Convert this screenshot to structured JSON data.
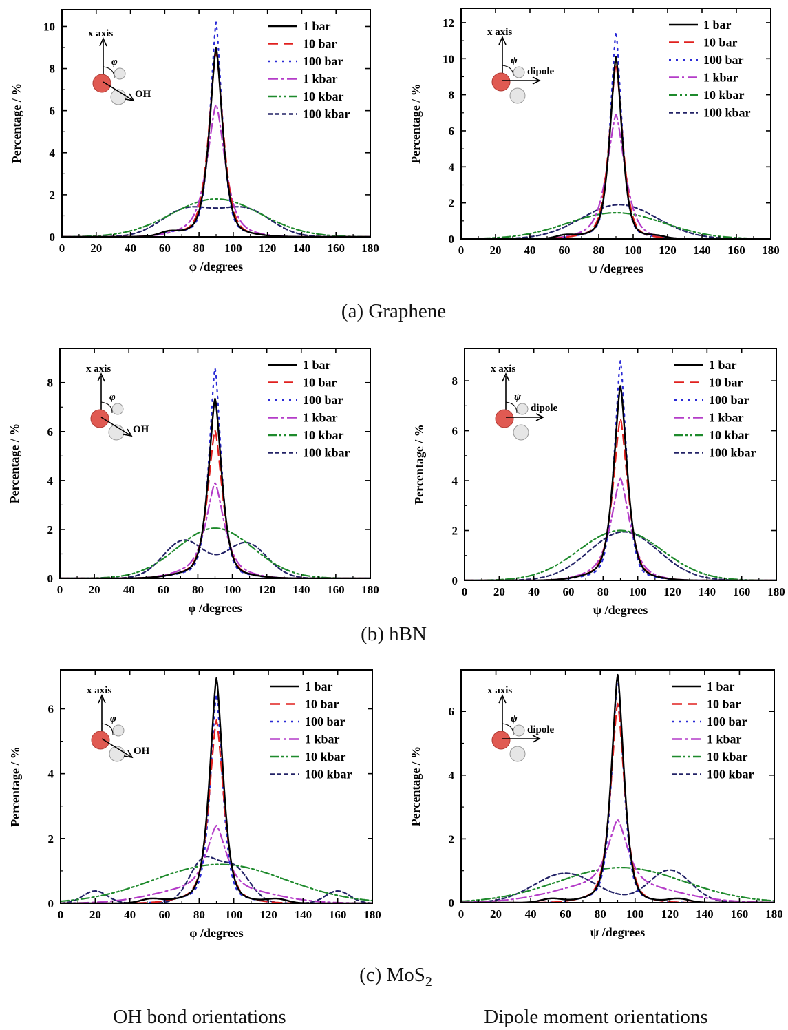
{
  "styles": {
    "1 bar": {
      "color": "#000000",
      "dash": ""
    },
    "10 bar": {
      "color": "#e0201e",
      "dash": "14 8"
    },
    "100 bar": {
      "color": "#2a2ad6",
      "dash": "3 7"
    },
    "1 kbar": {
      "color": "#b43cc8",
      "dash": "14 5 3 5"
    },
    "10 kbar": {
      "color": "#1e8a2c",
      "dash": "12 4 3 4 3 4"
    },
    "100 kbar": {
      "color": "#222266",
      "dash": "6 4"
    }
  },
  "captions": {
    "graphene": "(a) Graphene",
    "hbn": "(b) hBN",
    "mos2_pre": "(c) MoS",
    "mos2_sub": "2",
    "oh": "OH bond orientations",
    "dipole": "Dipole moment orientations"
  },
  "chart_data": [
    {
      "id": "graphene-oh",
      "type": "line",
      "xlabel": "φ /degrees",
      "ylabel": "Percentage / %",
      "xlim": [
        0,
        180
      ],
      "ylim": [
        0,
        10.8
      ],
      "xticks": [
        0,
        20,
        40,
        60,
        80,
        100,
        120,
        140,
        160,
        180
      ],
      "yticks": [
        0,
        2,
        4,
        6,
        8,
        10
      ],
      "inset": {
        "axis": "x axis",
        "angle": "φ",
        "vector": "OH"
      },
      "series": [
        {
          "name": "1 bar",
          "comps": [
            [
              90,
              8.5,
              3.5,
              1.5
            ],
            [
              88,
              0.5,
              16,
              2
            ],
            [
              62,
              0.15,
              5,
              2
            ]
          ]
        },
        {
          "name": "10 bar",
          "comps": [
            [
              90,
              8.3,
              3.8,
              1.5
            ],
            [
              88,
              0.5,
              16,
              2
            ],
            [
              62,
              0.15,
              5,
              2
            ]
          ]
        },
        {
          "name": "100 bar",
          "comps": [
            [
              90,
              9.7,
              3.2,
              1.5
            ],
            [
              88,
              0.5,
              16,
              2
            ],
            [
              62,
              0.12,
              5,
              2
            ]
          ]
        },
        {
          "name": "1 kbar",
          "comps": [
            [
              90,
              5.6,
              4.5,
              1.5
            ],
            [
              88,
              0.7,
              16,
              2
            ]
          ]
        },
        {
          "name": "10 kbar",
          "comps": [
            [
              90,
              1.8,
              26,
              2
            ]
          ]
        },
        {
          "name": "100 kbar",
          "comps": [
            [
              73,
              1.3,
              15,
              2
            ],
            [
              107,
              1.3,
              15,
              2
            ]
          ]
        }
      ]
    },
    {
      "id": "graphene-dipole",
      "type": "line",
      "xlabel": "ψ /degrees",
      "ylabel": "Percentage / %",
      "xlim": [
        0,
        180
      ],
      "ylim": [
        0,
        12.8
      ],
      "xticks": [
        0,
        20,
        40,
        60,
        80,
        100,
        120,
        140,
        160,
        180
      ],
      "yticks": [
        0,
        2,
        4,
        6,
        8,
        10,
        12
      ],
      "inset": {
        "axis": "x axis",
        "angle": "ψ",
        "vector": "dipole"
      },
      "series": [
        {
          "name": "1 bar",
          "comps": [
            [
              90,
              9.6,
              3.2,
              1.5
            ],
            [
              88,
              0.5,
              15,
              2
            ],
            [
              60,
              0.15,
              5,
              2
            ],
            [
              114,
              0.1,
              5,
              2
            ]
          ]
        },
        {
          "name": "10 bar",
          "comps": [
            [
              90,
              9.2,
              3.5,
              1.5
            ],
            [
              88,
              0.5,
              15,
              2
            ]
          ]
        },
        {
          "name": "100 bar",
          "comps": [
            [
              90,
              11.0,
              3.0,
              1.5
            ],
            [
              88,
              0.5,
              15,
              2
            ]
          ]
        },
        {
          "name": "1 kbar",
          "comps": [
            [
              90,
              6.2,
              4.5,
              1.5
            ],
            [
              88,
              0.7,
              15,
              2
            ]
          ]
        },
        {
          "name": "10 kbar",
          "comps": [
            [
              90,
              1.45,
              28,
              2
            ]
          ]
        },
        {
          "name": "100 kbar",
          "comps": [
            [
              92,
              1.9,
              22,
              2
            ]
          ]
        }
      ]
    },
    {
      "id": "hbn-oh",
      "type": "line",
      "xlabel": "φ /degrees",
      "ylabel": "Percentage / %",
      "xlim": [
        0,
        180
      ],
      "ylim": [
        0,
        9.4
      ],
      "xticks": [
        0,
        20,
        40,
        60,
        80,
        100,
        120,
        140,
        160,
        180
      ],
      "yticks": [
        0,
        2,
        4,
        6,
        8
      ],
      "inset": {
        "axis": "x axis",
        "angle": "φ",
        "vector": "OH"
      },
      "series": [
        {
          "name": "1 bar",
          "comps": [
            [
              90,
              6.9,
              3.5,
              1.5
            ],
            [
              88,
              0.45,
              16,
              2
            ]
          ]
        },
        {
          "name": "10 bar",
          "comps": [
            [
              90,
              5.6,
              3.8,
              1.5
            ],
            [
              88,
              0.45,
              16,
              2
            ]
          ]
        },
        {
          "name": "100 bar",
          "comps": [
            [
              90,
              8.2,
              3.2,
              1.5
            ],
            [
              88,
              0.4,
              16,
              2
            ]
          ]
        },
        {
          "name": "1 kbar",
          "comps": [
            [
              90,
              3.3,
              4.5,
              1.5
            ],
            [
              88,
              0.6,
              16,
              2
            ]
          ]
        },
        {
          "name": "10 kbar",
          "comps": [
            [
              90,
              2.05,
              22,
              2
            ]
          ]
        },
        {
          "name": "100 kbar",
          "comps": [
            [
              72,
              1.55,
              12,
              2
            ],
            [
              108,
              1.45,
              12,
              2
            ]
          ]
        }
      ]
    },
    {
      "id": "hbn-dipole",
      "type": "line",
      "xlabel": "ψ /degrees",
      "ylabel": "Percentage / %",
      "xlim": [
        0,
        180
      ],
      "ylim": [
        0,
        9.3
      ],
      "xticks": [
        0,
        20,
        40,
        60,
        80,
        100,
        120,
        140,
        160,
        180
      ],
      "yticks": [
        0,
        2,
        4,
        6,
        8
      ],
      "inset": {
        "axis": "x axis",
        "angle": "ψ",
        "vector": "dipole"
      },
      "series": [
        {
          "name": "1 bar",
          "comps": [
            [
              90,
              7.3,
              3.5,
              1.5
            ],
            [
              88,
              0.5,
              15,
              2
            ]
          ]
        },
        {
          "name": "10 bar",
          "comps": [
            [
              90,
              6.0,
              3.8,
              1.5
            ],
            [
              88,
              0.5,
              15,
              2
            ]
          ]
        },
        {
          "name": "100 bar",
          "comps": [
            [
              90,
              8.4,
              3.2,
              1.5
            ],
            [
              88,
              0.4,
              15,
              2
            ]
          ]
        },
        {
          "name": "1 kbar",
          "comps": [
            [
              90,
              3.5,
              4.5,
              1.5
            ],
            [
              88,
              0.6,
              15,
              2
            ]
          ]
        },
        {
          "name": "10 kbar",
          "comps": [
            [
              90,
              2.0,
              24,
              2
            ]
          ]
        },
        {
          "name": "100 kbar",
          "comps": [
            [
              92,
              1.95,
              20,
              2
            ]
          ]
        }
      ]
    },
    {
      "id": "mos2-oh",
      "type": "line",
      "xlabel": "φ /degrees",
      "ylabel": "Percentage / %",
      "xlim": [
        0,
        180
      ],
      "ylim": [
        0,
        7.2
      ],
      "xticks": [
        0,
        20,
        40,
        60,
        80,
        100,
        120,
        140,
        160,
        180
      ],
      "yticks": [
        0,
        2,
        4,
        6
      ],
      "inset": {
        "axis": "x axis",
        "angle": "φ",
        "vector": "OH"
      },
      "series": [
        {
          "name": "1 bar",
          "comps": [
            [
              90,
              6.6,
              3.5,
              1.5
            ],
            [
              88,
              0.35,
              16,
              2
            ],
            [
              52,
              0.12,
              6,
              2
            ],
            [
              125,
              0.12,
              6,
              2
            ]
          ]
        },
        {
          "name": "10 bar",
          "comps": [
            [
              90,
              5.3,
              3.8,
              1.5
            ],
            [
              88,
              0.35,
              16,
              2
            ]
          ]
        },
        {
          "name": "100 bar",
          "comps": [
            [
              90,
              6.1,
              3.2,
              1.5
            ],
            [
              88,
              0.35,
              16,
              2
            ]
          ]
        },
        {
          "name": "1 kbar",
          "comps": [
            [
              90,
              1.8,
              5,
              1.5
            ],
            [
              88,
              0.6,
              28,
              2
            ]
          ]
        },
        {
          "name": "10 kbar",
          "comps": [
            [
              92,
              1.2,
              38,
              2
            ]
          ]
        },
        {
          "name": "100 kbar",
          "comps": [
            [
              20,
              0.38,
              7,
              2
            ],
            [
              82,
              1.25,
              8,
              2
            ],
            [
              100,
              1.1,
              9,
              2
            ],
            [
              160,
              0.38,
              7,
              2
            ]
          ]
        }
      ]
    },
    {
      "id": "mos2-dipole",
      "type": "line",
      "xlabel": "ψ /degrees",
      "ylabel": "Percentage / %",
      "xlim": [
        0,
        180
      ],
      "ylim": [
        0,
        7.3
      ],
      "xticks": [
        0,
        20,
        40,
        60,
        80,
        100,
        120,
        140,
        160,
        180
      ],
      "yticks": [
        0,
        2,
        4,
        6
      ],
      "inset": {
        "axis": "x axis",
        "angle": "ψ",
        "vector": "dipole"
      },
      "series": [
        {
          "name": "1 bar",
          "comps": [
            [
              90,
              6.8,
              3.3,
              1.5
            ],
            [
              88,
              0.35,
              14,
              2
            ],
            [
              52,
              0.12,
              6,
              2
            ],
            [
              125,
              0.12,
              6,
              2
            ]
          ]
        },
        {
          "name": "10 bar",
          "comps": [
            [
              90,
              5.9,
              3.6,
              1.5
            ],
            [
              88,
              0.35,
              14,
              2
            ]
          ]
        },
        {
          "name": "100 bar",
          "comps": [
            [
              90,
              6.7,
              3.1,
              1.5
            ],
            [
              88,
              0.35,
              14,
              2
            ]
          ]
        },
        {
          "name": "1 kbar",
          "comps": [
            [
              90,
              1.9,
              5,
              1.5
            ],
            [
              88,
              0.7,
              30,
              2
            ]
          ]
        },
        {
          "name": "10 kbar",
          "comps": [
            [
              92,
              1.1,
              36,
              2
            ]
          ]
        },
        {
          "name": "100 kbar",
          "comps": [
            [
              60,
              0.92,
              18,
              2
            ],
            [
              120,
              1.02,
              12,
              2
            ]
          ]
        }
      ]
    }
  ]
}
